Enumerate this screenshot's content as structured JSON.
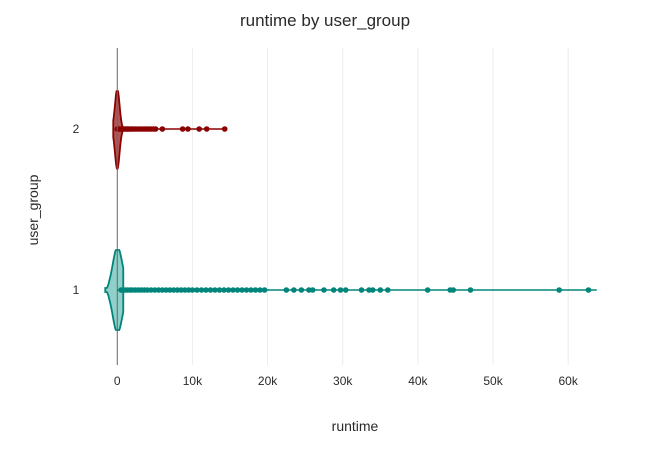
{
  "chart_data": {
    "type": "violin",
    "title": "runtime by user_group",
    "xlabel": "runtime",
    "ylabel": "user_group",
    "orientation": "horizontal",
    "xlim": [
      -1500,
      64500
    ],
    "x_ticks": [
      {
        "value": 0,
        "label": "0"
      },
      {
        "value": 10000,
        "label": "10k"
      },
      {
        "value": 20000,
        "label": "20k"
      },
      {
        "value": 30000,
        "label": "30k"
      },
      {
        "value": 40000,
        "label": "40k"
      },
      {
        "value": 50000,
        "label": "50k"
      },
      {
        "value": 60000,
        "label": "60k"
      }
    ],
    "categories": [
      "2",
      "1"
    ],
    "grid": "vertical",
    "series": [
      {
        "category": "2",
        "color": "#8b0000",
        "fill": "#a33a3a",
        "max": 14300,
        "points": [
          0,
          150,
          300,
          450,
          600,
          750,
          900,
          1100,
          1300,
          1500,
          1700,
          1900,
          2100,
          2400,
          2700,
          3000,
          3300,
          3600,
          3900,
          4200,
          4500,
          4800,
          5100,
          6000,
          8700,
          9400,
          10900,
          11900,
          14300
        ]
      },
      {
        "category": "1",
        "color": "#00857a",
        "fill": "#7cc8c1",
        "max": 63800,
        "points": [
          500,
          800,
          1100,
          1400,
          1700,
          2000,
          2400,
          2800,
          3200,
          3600,
          4000,
          4500,
          5000,
          5500,
          6000,
          6500,
          7000,
          7500,
          8000,
          8500,
          9000,
          9500,
          10000,
          10600,
          11200,
          11800,
          12400,
          13000,
          13600,
          14200,
          14800,
          15400,
          16000,
          16600,
          17200,
          17800,
          18400,
          19000,
          19600,
          22500,
          23500,
          24500,
          25500,
          26000,
          27500,
          28800,
          29700,
          30400,
          32500,
          33500,
          34000,
          35000,
          36000,
          41300,
          44300,
          44700,
          47000,
          58800,
          62700
        ]
      }
    ]
  }
}
